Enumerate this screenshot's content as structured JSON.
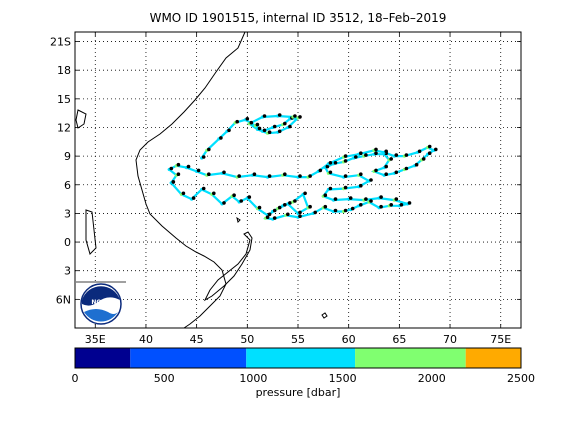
{
  "title": "WMO ID 1901515, internal ID 3512, 18–Feb–2019",
  "map": {
    "lon_range": [
      33,
      77
    ],
    "lat_range": [
      22,
      -9
    ],
    "x_ticks": [
      {
        "value": 35,
        "label": "35E"
      },
      {
        "value": 40,
        "label": "40"
      },
      {
        "value": 45,
        "label": "45"
      },
      {
        "value": 50,
        "label": "50"
      },
      {
        "value": 55,
        "label": "55"
      },
      {
        "value": 60,
        "label": "60"
      },
      {
        "value": 65,
        "label": "65"
      },
      {
        "value": 70,
        "label": "70"
      },
      {
        "value": 75,
        "label": "75E"
      }
    ],
    "y_ticks": [
      {
        "value": -6,
        "label": "6N"
      },
      {
        "value": -3,
        "label": "3"
      },
      {
        "value": 0,
        "label": "0"
      },
      {
        "value": 3,
        "label": "3"
      },
      {
        "value": 6,
        "label": "6"
      },
      {
        "value": 9,
        "label": "9"
      },
      {
        "value": 12,
        "label": "12"
      },
      {
        "value": 15,
        "label": "15"
      },
      {
        "value": 18,
        "label": "18"
      },
      {
        "value": 21,
        "label": "21S"
      }
    ],
    "grid": "dotted",
    "logo": "noaa-logo"
  },
  "colorbar": {
    "label": "pressure [dbar]",
    "range": [
      0,
      2500
    ],
    "tick_labels": [
      {
        "value": 0,
        "label": "0"
      },
      {
        "value": 500,
        "label": "500"
      },
      {
        "value": 1000,
        "label": "1000"
      },
      {
        "value": 1500,
        "label": "1500"
      },
      {
        "value": 2000,
        "label": "2000"
      },
      {
        "value": 2500,
        "label": "2500"
      }
    ],
    "segments": [
      {
        "from": 0,
        "to": 310,
        "color": "#000090"
      },
      {
        "from": 310,
        "to": 960,
        "color": "#0050ff"
      },
      {
        "from": 960,
        "to": 1570,
        "color": "#00e0ff"
      },
      {
        "from": 1570,
        "to": 2190,
        "color": "#80ff70"
      },
      {
        "from": 2190,
        "to": 2500,
        "color": "#ffaa00"
      }
    ]
  },
  "chart_data": {
    "type": "scatter",
    "track": [
      [
        42.5,
        6.2
      ],
      [
        43.5,
        5.0
      ],
      [
        44.5,
        4.5
      ],
      [
        45.5,
        5.5
      ],
      [
        46.5,
        5.0
      ],
      [
        47.5,
        4.0
      ],
      [
        48.5,
        4.8
      ],
      [
        49.2,
        4.2
      ],
      [
        50.0,
        4.6
      ],
      [
        51.0,
        3.5
      ],
      [
        52.0,
        2.8
      ],
      [
        53.0,
        3.5
      ],
      [
        54.0,
        4.0
      ],
      [
        55.0,
        3.0
      ],
      [
        56.0,
        3.6
      ],
      [
        55.5,
        5.0
      ],
      [
        54.5,
        4.2
      ],
      [
        53.5,
        3.8
      ],
      [
        52.5,
        3.2
      ],
      [
        51.8,
        2.5
      ],
      [
        52.5,
        2.4
      ],
      [
        53.8,
        2.8
      ],
      [
        55.0,
        2.6
      ],
      [
        56.5,
        3.0
      ],
      [
        57.5,
        3.6
      ],
      [
        58.5,
        3.2
      ],
      [
        59.5,
        3.2
      ],
      [
        60.2,
        3.4
      ],
      [
        61.0,
        3.8
      ],
      [
        62.0,
        4.2
      ],
      [
        63.0,
        3.6
      ],
      [
        64.0,
        3.8
      ],
      [
        65.0,
        3.8
      ],
      [
        65.8,
        4.0
      ],
      [
        64.5,
        4.4
      ],
      [
        63.0,
        4.6
      ],
      [
        61.5,
        4.4
      ],
      [
        60.0,
        4.5
      ],
      [
        58.5,
        4.4
      ],
      [
        57.5,
        4.8
      ],
      [
        58.0,
        5.5
      ],
      [
        59.5,
        5.6
      ],
      [
        61.0,
        5.8
      ],
      [
        62.0,
        6.4
      ],
      [
        61.0,
        7.0
      ],
      [
        59.5,
        6.8
      ],
      [
        58.0,
        7.2
      ],
      [
        57.7,
        7.8
      ],
      [
        58.5,
        8.2
      ],
      [
        59.5,
        8.4
      ],
      [
        60.5,
        8.8
      ],
      [
        61.5,
        9.0
      ],
      [
        62.5,
        9.2
      ],
      [
        63.5,
        9.2
      ],
      [
        64.0,
        8.6
      ],
      [
        63.5,
        7.8
      ],
      [
        62.5,
        7.4
      ],
      [
        63.5,
        7.0
      ],
      [
        64.5,
        7.2
      ],
      [
        65.5,
        7.6
      ],
      [
        66.5,
        8.0
      ],
      [
        67.2,
        8.6
      ],
      [
        67.8,
        9.2
      ],
      [
        68.4,
        9.6
      ],
      [
        67.8,
        9.9
      ],
      [
        66.8,
        9.4
      ],
      [
        65.5,
        9.0
      ],
      [
        64.5,
        9.0
      ],
      [
        63.5,
        9.4
      ],
      [
        62.5,
        9.6
      ],
      [
        61.0,
        9.2
      ],
      [
        59.5,
        8.9
      ],
      [
        58.0,
        8.2
      ],
      [
        57.0,
        7.4
      ],
      [
        56.0,
        6.8
      ],
      [
        55.0,
        6.8
      ],
      [
        53.5,
        7.0
      ],
      [
        52.0,
        6.8
      ],
      [
        50.5,
        7.0
      ],
      [
        49.0,
        6.8
      ],
      [
        47.5,
        7.2
      ],
      [
        46.0,
        7.0
      ],
      [
        45.0,
        7.4
      ],
      [
        44.0,
        7.8
      ],
      [
        43.0,
        8.0
      ],
      [
        42.3,
        7.6
      ],
      [
        43.0,
        7.0
      ],
      [
        42.5,
        6.2
      ]
    ],
    "track2": [
      [
        45.5,
        8.8
      ],
      [
        46.0,
        9.6
      ],
      [
        47.2,
        10.8
      ],
      [
        48.0,
        11.6
      ],
      [
        48.8,
        12.5
      ],
      [
        49.8,
        12.8
      ],
      [
        50.8,
        12.2
      ],
      [
        51.5,
        11.6
      ],
      [
        52.5,
        12.0
      ],
      [
        53.5,
        12.3
      ],
      [
        54.2,
        12.9
      ],
      [
        55.0,
        13.0
      ],
      [
        54.0,
        12.0
      ],
      [
        53.0,
        11.5
      ],
      [
        52.0,
        11.4
      ],
      [
        51.0,
        11.8
      ],
      [
        50.2,
        12.4
      ],
      [
        51.5,
        13.1
      ],
      [
        53.0,
        13.2
      ],
      [
        54.5,
        13.1
      ]
    ]
  }
}
